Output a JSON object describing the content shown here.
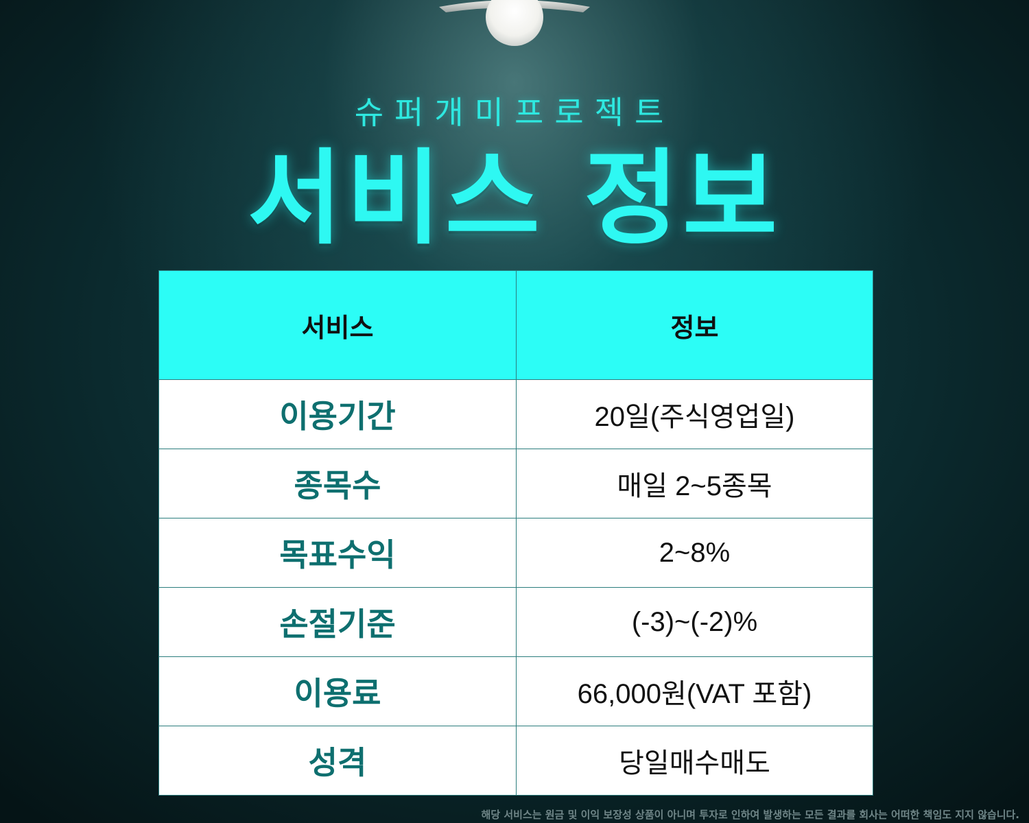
{
  "header": {
    "subtitle": "슈퍼개미프로젝트",
    "title": "서비스 정보"
  },
  "table": {
    "columns": [
      "서비스",
      "정보"
    ],
    "rows": [
      {
        "label": "이용기간",
        "value": "20일(주식영업일)"
      },
      {
        "label": "종목수",
        "value": "매일 2~5종목"
      },
      {
        "label": "목표수익",
        "value": "2~8%"
      },
      {
        "label": "손절기준",
        "value": "(-3)~(-2)%"
      },
      {
        "label": "이용료",
        "value": "66,000원(VAT 포함)"
      },
      {
        "label": "성격",
        "value": "당일매수매도"
      }
    ]
  },
  "footer": {
    "disclaimer": "해당 서비스는 원금 및 이익 보장성 상품이 아니며 투자로 인하여 발생하는 모든 결과를 회사는 어떠한 책임도 지지 않습니다."
  },
  "colors": {
    "accent": "#2cfdf6",
    "label_text": "#0e6f6f",
    "background": "#0b2a2e"
  },
  "icons": {
    "lamp": "ceiling-lamp-icon"
  }
}
